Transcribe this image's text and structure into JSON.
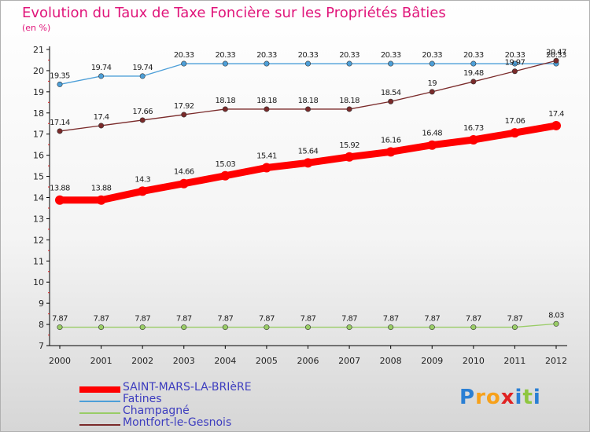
{
  "chart_data": {
    "type": "line",
    "title": "Evolution du Taux de Taxe Foncière sur les Propriétés Bâties",
    "unit_label": "(en %)",
    "xlabel": "",
    "ylabel": "",
    "ylim": [
      7,
      21
    ],
    "y_ticks": [
      "7",
      "8",
      "9",
      "10",
      "11",
      "12",
      "13",
      "14",
      "15",
      "16",
      "17",
      "18",
      "19",
      "20",
      "21"
    ],
    "categories": [
      "2000",
      "2001",
      "2002",
      "2003",
      "2004",
      "2005",
      "2006",
      "2007",
      "2008",
      "2009",
      "2010",
      "2011",
      "2012"
    ],
    "grid": false,
    "legend_position": "bottom-left",
    "series": [
      {
        "name": "SAINT-MARS-LA-BRIèRE",
        "color": "#ff0000",
        "values": [
          13.88,
          13.88,
          14.3,
          14.66,
          15.03,
          15.41,
          15.64,
          15.92,
          16.16,
          16.48,
          16.73,
          17.06,
          17.4
        ],
        "labels": [
          "13.88",
          "13.88",
          "14.3",
          "14.66",
          "15.03",
          "15.41",
          "15.64",
          "15.92",
          "16.16",
          "16.48",
          "16.73",
          "17.06",
          "17.4"
        ]
      },
      {
        "name": "Fatines",
        "color": "#4d9fd8",
        "values": [
          19.35,
          19.74,
          19.74,
          20.33,
          20.33,
          20.33,
          20.33,
          20.33,
          20.33,
          20.33,
          20.33,
          20.33,
          20.33
        ],
        "labels": [
          "19.35",
          "19.74",
          "19.74",
          "20.33",
          "20.33",
          "20.33",
          "20.33",
          "20.33",
          "20.33",
          "20.33",
          "20.33",
          "20.33",
          "20.33"
        ]
      },
      {
        "name": "Champagné",
        "color": "#99cc66",
        "values": [
          7.87,
          7.87,
          7.87,
          7.87,
          7.87,
          7.87,
          7.87,
          7.87,
          7.87,
          7.87,
          7.87,
          7.87,
          8.03
        ],
        "labels": [
          "7.87",
          "7.87",
          "7.87",
          "7.87",
          "7.87",
          "7.87",
          "7.87",
          "7.87",
          "7.87",
          "7.87",
          "7.87",
          "7.87",
          "8.03"
        ]
      },
      {
        "name": "Montfort-le-Gesnois",
        "color": "#7a2a2a",
        "values": [
          17.14,
          17.4,
          17.66,
          17.92,
          18.18,
          18.18,
          18.18,
          18.18,
          18.54,
          19,
          19.48,
          19.97,
          20.47
        ],
        "labels": [
          "17.14",
          "17.4",
          "17.66",
          "17.92",
          "18.18",
          "18.18",
          "18.18",
          "18.18",
          "18.54",
          "19",
          "19.48",
          "19.97",
          "20.47"
        ]
      }
    ]
  },
  "brand": {
    "letters": [
      "P",
      "r",
      "o",
      "x",
      "i",
      "t",
      "i"
    ],
    "colors": [
      "#2a7fd4",
      "#f7a11a",
      "#f7a11a",
      "#e02222",
      "#2a7fd4",
      "#8ec63f",
      "#2a7fd4"
    ]
  }
}
